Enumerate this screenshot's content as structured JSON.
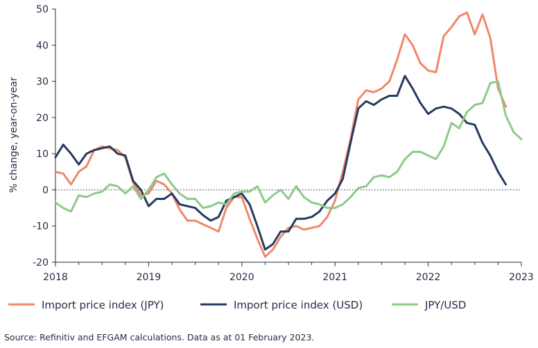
{
  "chart_data": {
    "type": "line",
    "ylabel": "% change, year-on-year",
    "xlabel": "",
    "ylim": [
      -20,
      50
    ],
    "yticks": [
      -20,
      -10,
      0,
      10,
      20,
      30,
      40,
      50
    ],
    "xlim": [
      2018,
      2023
    ],
    "xticks": [
      "2018",
      "2019",
      "2020",
      "2021",
      "2022",
      "2023"
    ],
    "zero_line": "dotted",
    "grid": false,
    "legend_position": "bottom",
    "source": "Source: Refinitiv and EFGAM calculations. Data as at 01 February 2023.",
    "colors": {
      "jpy": "#f0876a",
      "usd": "#243a5e",
      "fx": "#8ec98a"
    },
    "months_start": "2018-01",
    "series": [
      {
        "name": "Import price index (JPY)",
        "color": "#f0876a",
        "values": [
          5,
          4.5,
          1.5,
          5,
          6.5,
          11,
          12,
          11.5,
          11,
          9,
          2,
          -1.5,
          -1,
          2.5,
          1.5,
          -1,
          -5.5,
          -8.5,
          -8.5,
          -9.5,
          -10.5,
          -11.5,
          -5,
          -2,
          -2,
          -8,
          -13.5,
          -18.5,
          -16.5,
          -13,
          -10.5,
          -10,
          -11,
          -10.5,
          -10,
          -7.5,
          -3,
          5,
          14,
          25,
          27.5,
          27,
          28,
          30,
          36,
          43,
          40,
          35,
          33,
          32.5,
          42.5,
          45,
          48,
          49,
          43,
          48.5,
          42,
          28,
          23
        ]
      },
      {
        "name": "Import price index (USD)",
        "color": "#243a5e",
        "values": [
          9,
          12.5,
          10,
          7,
          10,
          11,
          11.5,
          12,
          10,
          9.5,
          2.5,
          0,
          -4.5,
          -2.5,
          -2.5,
          -1,
          -4,
          -4.5,
          -5,
          -7,
          -8.5,
          -7.5,
          -3,
          -2,
          -1,
          -4,
          -10,
          -16.5,
          -15,
          -11.5,
          -11.5,
          -8,
          -8,
          -7.5,
          -6,
          -3,
          -1,
          3,
          13,
          22.5,
          24.5,
          23.5,
          25,
          26,
          26,
          31.5,
          28,
          24,
          21,
          22.5,
          23,
          22.5,
          21,
          18.5,
          18,
          13,
          9.5,
          5,
          1.5
        ]
      },
      {
        "name": "JPY/USD",
        "color": "#8ec98a",
        "values": [
          -3.5,
          -5,
          -6,
          -1.5,
          -2,
          -1,
          -0.5,
          1.5,
          1,
          -1,
          1,
          -2.5,
          0,
          3.5,
          4.5,
          1.5,
          -1,
          -2.5,
          -2.5,
          -5,
          -4.5,
          -3.5,
          -4,
          -1,
          -0.5,
          -0.5,
          1,
          -3.5,
          -1.5,
          0,
          -2.5,
          1,
          -2,
          -3.5,
          -4,
          -5,
          -5,
          -4,
          -2,
          0.5,
          1,
          3.5,
          4,
          3.5,
          5,
          8.5,
          10.5,
          10.5,
          9.5,
          8.5,
          12,
          18.5,
          17,
          21.5,
          23.5,
          24,
          29.5,
          30,
          20.5,
          16,
          14
        ]
      }
    ]
  }
}
